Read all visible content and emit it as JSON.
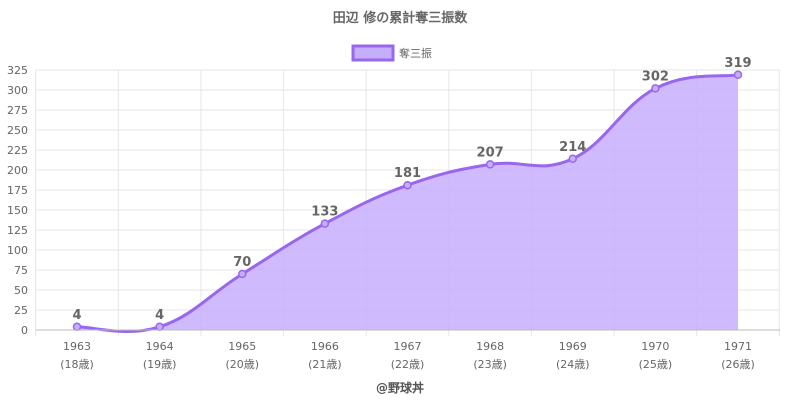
{
  "chart_data": {
    "type": "area",
    "title": "田辺 修の累計奪三振数",
    "categories": [
      "1963",
      "1964",
      "1965",
      "1966",
      "1967",
      "1968",
      "1969",
      "1970",
      "1971"
    ],
    "category_sublabels": [
      "(18歳)",
      "(19歳)",
      "(20歳)",
      "(21歳)",
      "(22歳)",
      "(23歳)",
      "(24歳)",
      "(25歳)",
      "(26歳)"
    ],
    "series": [
      {
        "name": "奪三振",
        "values": [
          4,
          4,
          70,
          133,
          181,
          207,
          214,
          302,
          319
        ]
      }
    ],
    "ylim": [
      0,
      325
    ],
    "yticks": [
      0,
      25,
      50,
      75,
      100,
      125,
      150,
      175,
      200,
      225,
      250,
      275,
      300,
      325
    ],
    "grid": true,
    "legend_position": "top",
    "colors": {
      "line": "#9966ee",
      "fill": "#c5aefc",
      "grid": "#e6e6e6",
      "axis": "#bbbbbb"
    }
  },
  "footer": "@野球丼"
}
